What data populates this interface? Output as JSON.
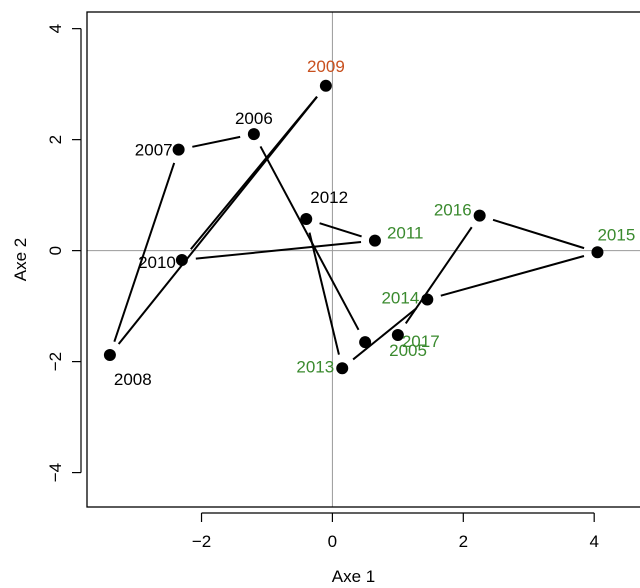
{
  "chart_data": {
    "type": "scatter",
    "title": "",
    "xlabel": "Axe 1",
    "ylabel": "Axe 2",
    "xlim": [
      -3.75,
      4.7
    ],
    "ylim": [
      -4.62,
      4.3
    ],
    "xticks": [
      -2,
      0,
      2,
      4
    ],
    "yticks": [
      -4,
      -2,
      0,
      2,
      4
    ],
    "reference_lines": {
      "x": 0,
      "y": 0
    },
    "grid": false,
    "legend": "none",
    "colors": {
      "black": "#000000",
      "green": "#3a8a2e",
      "orange": "#c8501e",
      "refline": "#999999"
    },
    "points": [
      {
        "label": "2005",
        "x": 0.5,
        "y": -1.65,
        "color": "green"
      },
      {
        "label": "2006",
        "x": -1.2,
        "y": 2.1,
        "color": "black"
      },
      {
        "label": "2007",
        "x": -2.35,
        "y": 1.82,
        "color": "black"
      },
      {
        "label": "2008",
        "x": -3.4,
        "y": -1.88,
        "color": "black"
      },
      {
        "label": "2009",
        "x": -0.1,
        "y": 2.97,
        "color": "orange"
      },
      {
        "label": "2010",
        "x": -2.3,
        "y": -0.17,
        "color": "black"
      },
      {
        "label": "2011",
        "x": 0.65,
        "y": 0.18,
        "color": "green"
      },
      {
        "label": "2012",
        "x": -0.4,
        "y": 0.57,
        "color": "black"
      },
      {
        "label": "2013",
        "x": 0.15,
        "y": -2.12,
        "color": "green"
      },
      {
        "label": "2014",
        "x": 1.45,
        "y": -0.88,
        "color": "green"
      },
      {
        "label": "2015",
        "x": 4.05,
        "y": -0.03,
        "color": "green"
      },
      {
        "label": "2016",
        "x": 2.25,
        "y": 0.63,
        "color": "green"
      },
      {
        "label": "2017",
        "x": 1.0,
        "y": -1.52,
        "color": "green"
      }
    ],
    "path_order": [
      "2005",
      "2006",
      "2007",
      "2008",
      "2009",
      "2010",
      "2011",
      "2012",
      "2013",
      "2014",
      "2015",
      "2016",
      "2017"
    ]
  }
}
